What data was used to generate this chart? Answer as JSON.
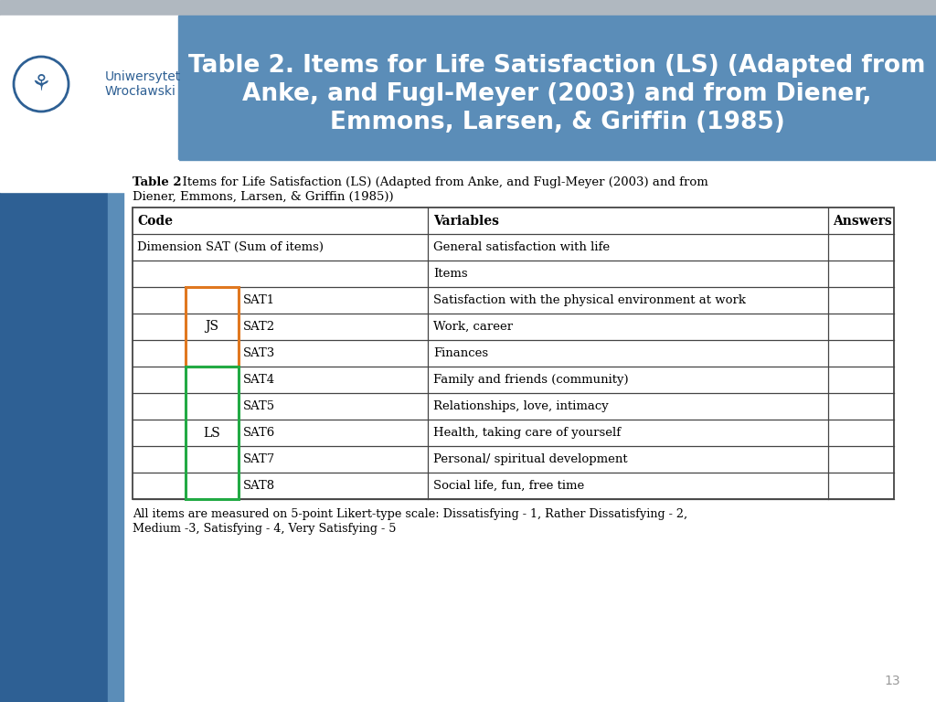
{
  "title_line1": "Table 2. Items for Life Satisfaction (LS) (Adapted from",
  "title_line2": "Anke, and Fugl-Meyer (2003) and from Diener,",
  "title_line3": "Emmons, Larsen, & Griffin (1985)",
  "header_bg": "#5b8db8",
  "left_dark_blue": "#2e6094",
  "left_light_blue": "#5b8db8",
  "logo_area_bg": "#ffffff",
  "top_gray_bar": "#b0b8c0",
  "slide_bg": "#ffffff",
  "caption_bold": "Table 2",
  "caption_rest_line1": ". Items for Life Satisfaction (LS) (Adapted from Anke, and Fugl-Meyer (2003) and from",
  "caption_rest_line2": "Diener, Emmons, Larsen, & Griffin (1985))",
  "footnote_line1": "All items are measured on 5-point Likert-type scale: Dissatisfying - 1, Rather Dissatisfying - 2,",
  "footnote_line2": "Medium -3, Satisfying - 4, Very Satisfying - 5",
  "page_number": "13",
  "js_border_color": "#e07820",
  "ls_border_color": "#22aa44",
  "table_line_color": "#444444",
  "title_font_color": "#ffffff",
  "univ_name_color": "#2e6094",
  "sat_data": [
    [
      "SAT1",
      "Satisfaction with the physical environment at work"
    ],
    [
      "SAT2",
      "Work, career"
    ],
    [
      "SAT3",
      "Finances"
    ],
    [
      "SAT4",
      "Family and friends (community)"
    ],
    [
      "SAT5",
      "Relationships, love, intimacy"
    ],
    [
      "SAT6",
      "Health, taking care of yourself"
    ],
    [
      "SAT7",
      "Personal/ spiritual development"
    ],
    [
      "SAT8",
      "Social life, fun, free time"
    ]
  ]
}
